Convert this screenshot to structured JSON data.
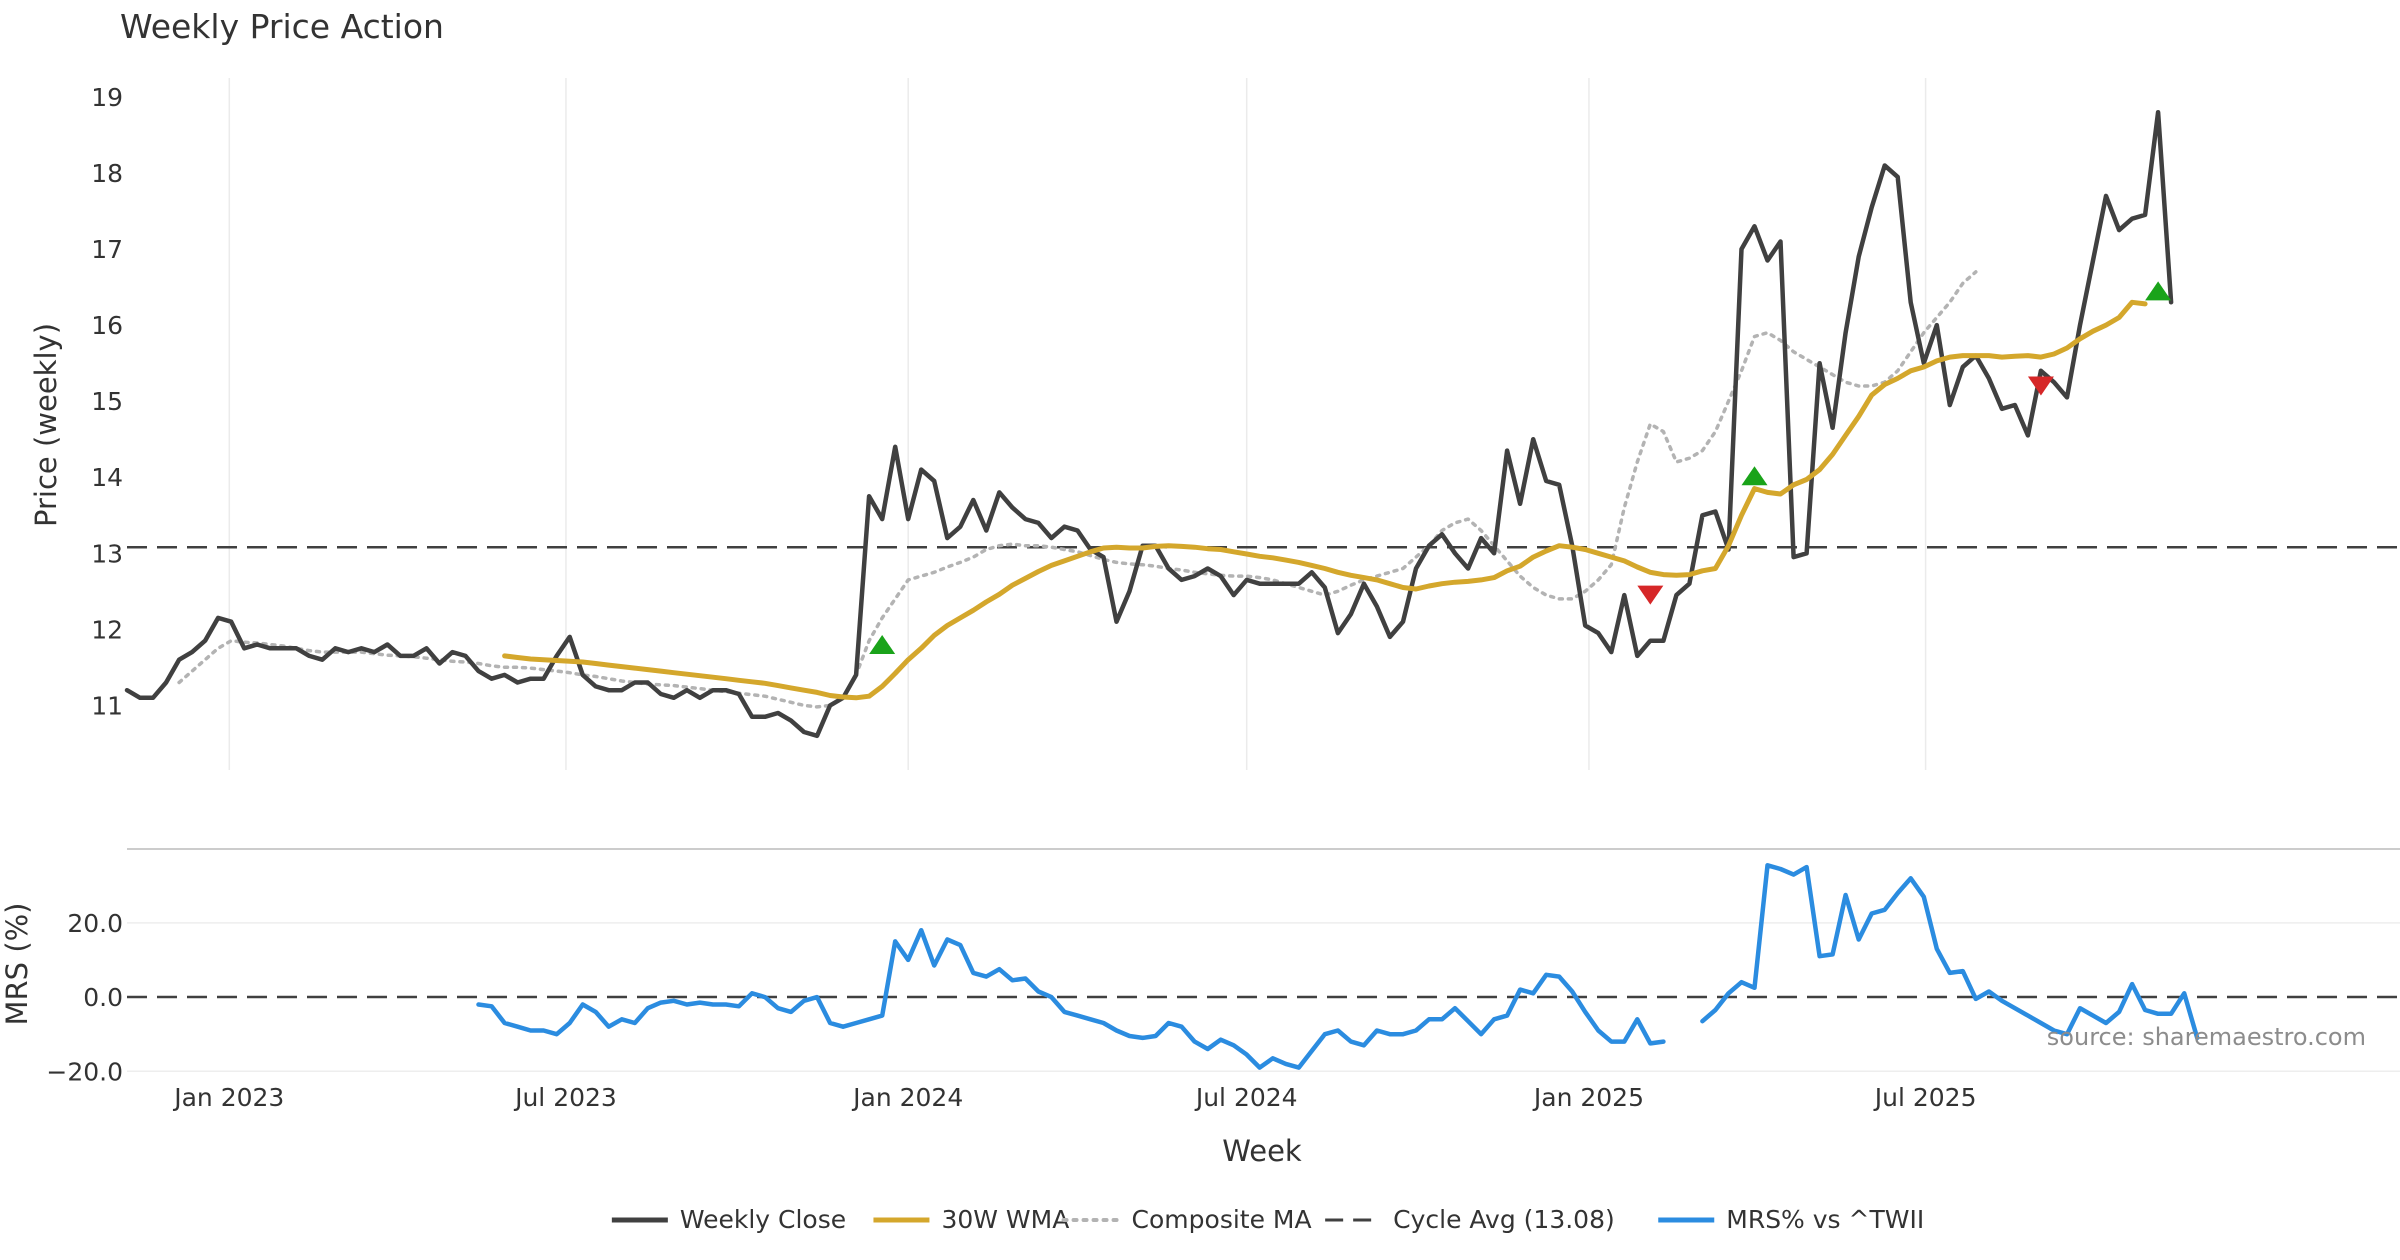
{
  "chart_data": {
    "type": "line",
    "title": "Weekly Price Action",
    "source_text": "source: sharemaestro.com",
    "xlabel": "Week",
    "x_ticks": [
      "2023-01-01",
      "2023-07-01",
      "2024-01-01",
      "2024-07-01",
      "2025-01-01",
      "2025-07-01"
    ],
    "x_tick_labels": [
      "Jan 2023",
      "Jul 2023",
      "Jan 2024",
      "Jul 2024",
      "Jan 2025",
      "Jul 2025"
    ],
    "x_start": "2022-11-07",
    "x_step_days": 7,
    "price_panel": {
      "ylabel": "Price (weekly)",
      "ylim": [
        10.15,
        19.25
      ],
      "yticks": [
        11,
        12,
        13,
        14,
        15,
        16,
        17,
        18,
        19
      ],
      "cycle_avg": 13.08,
      "grid": "vertical",
      "series": [
        {
          "name": "Weekly Close",
          "color": "#404040",
          "style": "solid",
          "values": [
            11.2,
            11.1,
            11.1,
            11.3,
            11.6,
            11.7,
            11.85,
            12.15,
            12.1,
            11.75,
            11.8,
            11.75,
            11.75,
            11.75,
            11.65,
            11.6,
            11.75,
            11.7,
            11.75,
            11.7,
            11.8,
            11.65,
            11.65,
            11.75,
            11.55,
            11.7,
            11.65,
            11.45,
            11.35,
            11.4,
            11.3,
            11.35,
            11.35,
            11.65,
            11.9,
            11.4,
            11.25,
            11.2,
            11.2,
            11.3,
            11.3,
            11.15,
            11.1,
            11.2,
            11.1,
            11.2,
            11.2,
            11.15,
            10.85,
            10.85,
            10.9,
            10.8,
            10.65,
            10.6,
            11.0,
            11.1,
            11.4,
            13.75,
            13.45,
            14.4,
            13.45,
            14.1,
            13.95,
            13.2,
            13.35,
            13.7,
            13.3,
            13.8,
            13.6,
            13.45,
            13.4,
            13.2,
            13.35,
            13.3,
            13.05,
            12.95,
            12.1,
            12.5,
            13.1,
            13.1,
            12.8,
            12.65,
            12.7,
            12.8,
            12.7,
            12.45,
            12.65,
            12.6,
            12.6,
            12.6,
            12.6,
            12.75,
            12.55,
            11.95,
            12.2,
            12.6,
            12.3,
            11.9,
            12.1,
            12.8,
            13.1,
            13.25,
            13.0,
            12.8,
            13.2,
            13.0,
            14.35,
            13.65,
            14.5,
            13.95,
            13.9,
            13.1,
            12.05,
            11.95,
            11.7,
            12.45,
            11.65,
            11.85,
            11.85,
            12.45,
            12.6,
            13.5,
            13.55,
            13.05,
            17.0,
            17.3,
            16.85,
            17.1,
            12.95,
            13.0,
            15.5,
            14.65,
            15.9,
            16.9,
            17.55,
            18.1,
            17.95,
            16.3,
            15.5,
            16.0,
            14.95,
            15.45,
            15.6,
            15.3,
            14.9,
            14.95,
            14.55,
            15.4,
            15.25,
            15.05,
            16.0,
            16.85,
            17.7,
            17.25,
            17.4,
            17.45,
            18.8,
            16.3
          ]
        },
        {
          "name": "30W WMA",
          "color": "#d4a72c",
          "style": "solid",
          "start_index": 29,
          "values": [
            11.65,
            11.63,
            11.61,
            11.6,
            11.59,
            11.58,
            11.57,
            11.55,
            11.53,
            11.51,
            11.49,
            11.47,
            11.45,
            11.43,
            11.41,
            11.39,
            11.37,
            11.35,
            11.33,
            11.31,
            11.29,
            11.26,
            11.23,
            11.2,
            11.17,
            11.13,
            11.11,
            11.1,
            11.12,
            11.25,
            11.42,
            11.6,
            11.75,
            11.92,
            12.05,
            12.15,
            12.25,
            12.36,
            12.46,
            12.58,
            12.67,
            12.76,
            12.84,
            12.9,
            12.96,
            13.02,
            13.07,
            13.08,
            13.07,
            13.07,
            13.09,
            13.1,
            13.09,
            13.08,
            13.06,
            13.05,
            13.02,
            12.99,
            12.96,
            12.94,
            12.91,
            12.88,
            12.84,
            12.8,
            12.75,
            12.71,
            12.68,
            12.65,
            12.6,
            12.55,
            12.53,
            12.57,
            12.6,
            12.62,
            12.63,
            12.65,
            12.68,
            12.77,
            12.83,
            12.95,
            13.03,
            13.1,
            13.08,
            13.05,
            13.0,
            12.95,
            12.9,
            12.82,
            12.75,
            12.72,
            12.71,
            12.72,
            12.77,
            12.8,
            13.1,
            13.5,
            13.85,
            13.8,
            13.78,
            13.9,
            13.97,
            14.1,
            14.3,
            14.55,
            14.8,
            15.08,
            15.22,
            15.3,
            15.4,
            15.45,
            15.53,
            15.58,
            15.6,
            15.6,
            15.6,
            15.58,
            15.59,
            15.6,
            15.58,
            15.62,
            15.7,
            15.82,
            15.92,
            16.0,
            16.1,
            16.3,
            16.28
          ]
        },
        {
          "name": "Composite MA",
          "color": "#b3b3b3",
          "style": "dotted",
          "start_index": 4,
          "values": [
            11.3,
            11.45,
            11.6,
            11.75,
            11.85,
            11.83,
            11.82,
            11.8,
            11.78,
            11.75,
            11.72,
            11.7,
            11.7,
            11.7,
            11.7,
            11.68,
            11.66,
            11.65,
            11.64,
            11.62,
            11.6,
            11.58,
            11.57,
            11.55,
            11.52,
            11.5,
            11.5,
            11.49,
            11.47,
            11.45,
            11.43,
            11.4,
            11.38,
            11.35,
            11.32,
            11.3,
            11.28,
            11.27,
            11.26,
            11.24,
            11.22,
            11.2,
            11.18,
            11.16,
            11.14,
            11.12,
            11.08,
            11.04,
            11.0,
            10.98,
            11.0,
            11.1,
            11.4,
            11.85,
            12.15,
            12.4,
            12.65,
            12.7,
            12.75,
            12.82,
            12.88,
            12.95,
            13.05,
            13.1,
            13.12,
            13.1,
            13.1,
            13.08,
            13.05,
            13.02,
            12.97,
            12.92,
            12.88,
            12.86,
            12.85,
            12.83,
            12.8,
            12.78,
            12.75,
            12.73,
            12.71,
            12.7,
            12.7,
            12.68,
            12.65,
            12.6,
            12.55,
            12.5,
            12.45,
            12.5,
            12.58,
            12.65,
            12.7,
            12.75,
            12.8,
            12.95,
            13.1,
            13.3,
            13.4,
            13.45,
            13.3,
            13.1,
            12.9,
            12.7,
            12.55,
            12.45,
            12.4,
            12.4,
            12.5,
            12.65,
            12.85,
            13.6,
            14.2,
            14.7,
            14.6,
            14.2,
            14.25,
            14.35,
            14.6,
            15.0,
            15.4,
            15.85,
            15.9,
            15.8,
            15.65,
            15.55,
            15.45,
            15.35,
            15.25,
            15.2,
            15.2,
            15.25,
            15.4,
            15.65,
            15.9,
            16.1,
            16.3,
            16.55,
            16.7
          ]
        }
      ],
      "markers": [
        {
          "type": "buy",
          "color": "#1aa31a",
          "index": 58,
          "value": 11.8
        },
        {
          "type": "sell",
          "color": "#d62728",
          "index": 117,
          "value": 12.45
        },
        {
          "type": "buy",
          "color": "#1aa31a",
          "index": 125,
          "value": 14.02
        },
        {
          "type": "sell",
          "color": "#d62728",
          "index": 147,
          "value": 15.2
        },
        {
          "type": "buy",
          "color": "#1aa31a",
          "index": 156,
          "value": 16.45
        }
      ]
    },
    "mrs_panel": {
      "ylabel": "MRS (%)",
      "ylim": [
        -21,
        38
      ],
      "yticks": [
        -20,
        0,
        20
      ],
      "ytick_labels": [
        "−20.0",
        "0.0",
        "20.0"
      ],
      "series": [
        {
          "name": "MRS% vs ^TWII",
          "color": "#2b8ce0",
          "style": "solid",
          "start_index": 27,
          "values": [
            -2,
            -2.5,
            -7,
            -8,
            -9,
            -9,
            -10,
            -7,
            -2,
            -4,
            -8,
            -6,
            -7,
            -3,
            -1.5,
            -1,
            -2,
            -1.5,
            -2,
            -2,
            -2.5,
            1,
            0,
            -3,
            -4,
            -1,
            0,
            -7,
            -8,
            -7,
            -6,
            -5,
            15,
            10,
            18,
            8.5,
            15.5,
            14,
            6.5,
            5.5,
            7.5,
            4.5,
            5,
            1.5,
            0,
            -4,
            -5,
            -6,
            -7,
            -9,
            -10.5,
            -11,
            -10.5,
            -7,
            -8,
            -12,
            -14,
            -11.5,
            -13,
            -15.5,
            -19,
            -16.5,
            -18,
            -19,
            -14.5,
            -10,
            -9,
            -12,
            -13,
            -9,
            -10,
            -10,
            -9,
            -6,
            -6,
            -3,
            -6.5,
            -10,
            -6,
            -5,
            2,
            1,
            6,
            5.5,
            1.5,
            -4,
            -9,
            -12,
            -12,
            -6,
            -12.5,
            -12,
            null,
            null,
            -6.5,
            -3.5,
            1,
            4,
            2.5,
            35.5,
            34.5,
            33,
            35,
            11,
            11.5,
            27.5,
            15.5,
            22.5,
            23.5,
            28,
            32,
            27,
            13,
            6.5,
            7,
            -0.5,
            1.5,
            -1,
            -3,
            -5,
            -7,
            -9,
            -10,
            -3,
            -5,
            -7,
            -4,
            3.5,
            -3.5,
            -4.5,
            -4.5,
            1,
            -11
          ]
        }
      ]
    },
    "legend": {
      "placement": "bottom-center",
      "entries": [
        {
          "label": "Weekly Close",
          "color": "#404040",
          "style": "solid"
        },
        {
          "label": "30W WMA",
          "color": "#d4a72c",
          "style": "solid"
        },
        {
          "label": "Composite MA",
          "color": "#b3b3b3",
          "style": "dotted"
        },
        {
          "label": "Cycle Avg (13.08)",
          "color": "#404040",
          "style": "dashed"
        },
        {
          "label": "MRS% vs ^TWII",
          "color": "#2b8ce0",
          "style": "solid"
        }
      ]
    }
  }
}
